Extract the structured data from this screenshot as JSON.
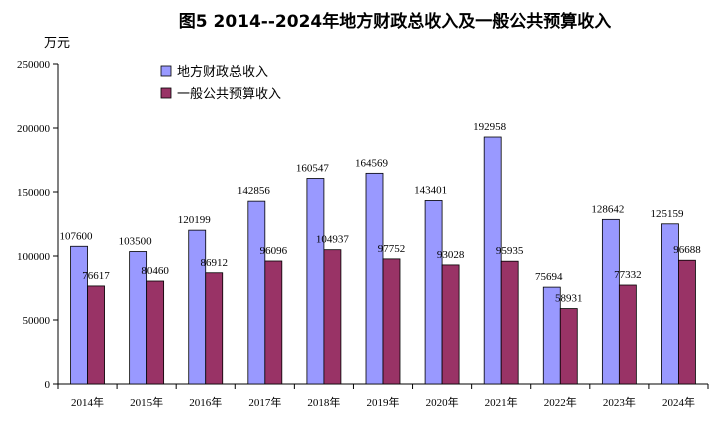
{
  "chart_data": {
    "type": "bar",
    "title": "图5   2014--2024年地方财政总收入及一般公共预算收入",
    "unit": "万元",
    "categories": [
      "2014年",
      "2015年",
      "2016年",
      "2017年",
      "2018年",
      "2019年",
      "2020年",
      "2021年",
      "2022年",
      "2023年",
      "2024年"
    ],
    "series": [
      {
        "name": "地方财政总收入",
        "color": "#9999ff",
        "values": [
          107600,
          103500,
          120199,
          142856,
          160547,
          164569,
          143401,
          192958,
          75694,
          128642,
          125159
        ]
      },
      {
        "name": "一般公共预算收入",
        "color": "#993366",
        "values": [
          76617,
          80460,
          86912,
          96096,
          104937,
          97752,
          93028,
          95935,
          58931,
          77332,
          96688
        ]
      }
    ],
    "ylim": [
      0,
      250000
    ],
    "yticks": [
      0,
      50000,
      100000,
      150000,
      200000,
      250000
    ],
    "legend_position": "top-left",
    "grid": false
  }
}
